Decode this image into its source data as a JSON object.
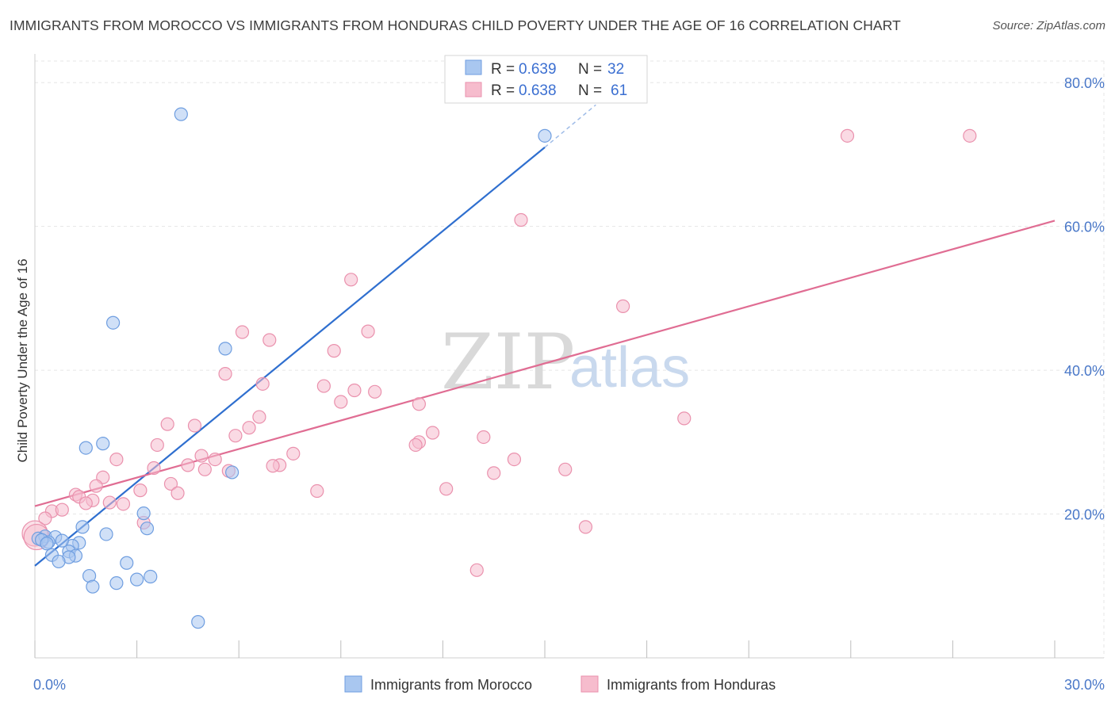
{
  "title": "IMMIGRANTS FROM MOROCCO VS IMMIGRANTS FROM HONDURAS CHILD POVERTY UNDER THE AGE OF 16 CORRELATION CHART",
  "source": "Source: ZipAtlas.com",
  "watermark": {
    "zip": "ZIP",
    "atlas": "atlas"
  },
  "colors": {
    "morocco_fill": "#a9c7f0",
    "morocco_stroke": "#6f9ee0",
    "morocco_line": "#2f6fcf",
    "honduras_fill": "#f6bccd",
    "honduras_stroke": "#ea91ad",
    "honduras_line": "#e06d93",
    "grid": "#e6e6e6",
    "tick_label": "#4a78c8"
  },
  "legend": {
    "rows": [
      {
        "r_label": "R =",
        "r_value": "0.639",
        "n_label": "N =",
        "n_value": "32"
      },
      {
        "r_label": "R =",
        "r_value": "0.638",
        "n_label": "N =",
        "n_value": "61"
      }
    ]
  },
  "chart_data": {
    "type": "scatter",
    "xlabel": "",
    "ylabel": "Child Poverty Under the Age of 16",
    "xlim": [
      0,
      30
    ],
    "ylim": [
      0,
      83
    ],
    "x_tick_labels": [
      {
        "value": 0,
        "label": "0.0%"
      },
      {
        "value": 30,
        "label": "30.0%"
      }
    ],
    "y_tick_labels": [
      {
        "value": 20,
        "label": "20.0%"
      },
      {
        "value": 40,
        "label": "40.0%"
      },
      {
        "value": 60,
        "label": "60.0%"
      },
      {
        "value": 80,
        "label": "80.0%"
      }
    ],
    "x_minor_ticks": [
      0,
      3,
      6,
      9,
      12,
      15,
      18,
      21,
      24,
      27,
      30
    ],
    "grid": true,
    "series": [
      {
        "name": "Immigrants from Morocco",
        "color": "#6f9ee0",
        "points": [
          [
            4.3,
            75.6
          ],
          [
            15.0,
            72.6
          ],
          [
            2.3,
            46.6
          ],
          [
            5.6,
            43.0
          ],
          [
            2.0,
            29.8
          ],
          [
            1.5,
            29.2
          ],
          [
            5.8,
            25.8
          ],
          [
            3.2,
            20.1
          ],
          [
            3.3,
            18.0
          ],
          [
            1.4,
            18.2
          ],
          [
            2.1,
            17.2
          ],
          [
            0.3,
            16.9
          ],
          [
            0.6,
            16.8
          ],
          [
            0.1,
            16.6
          ],
          [
            0.4,
            16.1
          ],
          [
            1.3,
            16.0
          ],
          [
            1.1,
            15.6
          ],
          [
            1.0,
            14.8
          ],
          [
            0.5,
            14.3
          ],
          [
            1.2,
            14.2
          ],
          [
            1.0,
            14.0
          ],
          [
            0.7,
            13.4
          ],
          [
            2.7,
            13.2
          ],
          [
            1.6,
            11.4
          ],
          [
            3.4,
            11.3
          ],
          [
            3.0,
            10.9
          ],
          [
            2.4,
            10.4
          ],
          [
            1.7,
            9.9
          ],
          [
            4.8,
            5.0
          ],
          [
            0.2,
            16.4
          ],
          [
            0.8,
            16.3
          ],
          [
            0.35,
            15.9
          ]
        ]
      },
      {
        "name": "Immigrants from Honduras",
        "color": "#ea91ad",
        "points": [
          [
            23.9,
            72.6
          ],
          [
            27.5,
            72.6
          ],
          [
            14.3,
            60.9
          ],
          [
            9.3,
            52.6
          ],
          [
            17.3,
            48.9
          ],
          [
            6.1,
            45.3
          ],
          [
            9.8,
            45.4
          ],
          [
            6.9,
            44.2
          ],
          [
            8.8,
            42.7
          ],
          [
            5.6,
            39.5
          ],
          [
            6.7,
            38.1
          ],
          [
            8.5,
            37.8
          ],
          [
            9.4,
            37.2
          ],
          [
            10.0,
            37.0
          ],
          [
            9.0,
            35.6
          ],
          [
            11.3,
            35.3
          ],
          [
            6.6,
            33.5
          ],
          [
            3.9,
            32.5
          ],
          [
            4.7,
            32.3
          ],
          [
            6.3,
            32.0
          ],
          [
            19.1,
            33.3
          ],
          [
            11.7,
            31.3
          ],
          [
            5.9,
            30.9
          ],
          [
            13.2,
            30.7
          ],
          [
            11.3,
            30.0
          ],
          [
            11.2,
            29.6
          ],
          [
            3.6,
            29.6
          ],
          [
            7.6,
            28.4
          ],
          [
            4.9,
            28.1
          ],
          [
            2.4,
            27.6
          ],
          [
            5.3,
            27.6
          ],
          [
            14.1,
            27.6
          ],
          [
            4.5,
            26.8
          ],
          [
            7.2,
            26.8
          ],
          [
            7.0,
            26.7
          ],
          [
            3.5,
            26.4
          ],
          [
            5.0,
            26.2
          ],
          [
            5.7,
            26.0
          ],
          [
            15.6,
            26.2
          ],
          [
            13.5,
            25.7
          ],
          [
            2.0,
            25.1
          ],
          [
            1.8,
            23.9
          ],
          [
            4.0,
            24.2
          ],
          [
            12.1,
            23.5
          ],
          [
            8.3,
            23.2
          ],
          [
            3.1,
            23.3
          ],
          [
            4.2,
            22.9
          ],
          [
            1.2,
            22.7
          ],
          [
            1.3,
            22.4
          ],
          [
            1.7,
            21.9
          ],
          [
            2.2,
            21.6
          ],
          [
            1.5,
            21.5
          ],
          [
            2.6,
            21.4
          ],
          [
            0.5,
            20.4
          ],
          [
            0.8,
            20.6
          ],
          [
            0.3,
            19.4
          ],
          [
            3.2,
            18.8
          ],
          [
            16.2,
            18.2
          ],
          [
            0.0,
            17.3
          ],
          [
            0.05,
            16.8
          ],
          [
            13.0,
            12.2
          ]
        ]
      }
    ],
    "trend_lines": [
      {
        "series": "Immigrants from Morocco",
        "x": [
          0,
          15.0
        ],
        "y": [
          12.8,
          71.0
        ],
        "dashed_extension_to": [
          16.5,
          76.9
        ]
      },
      {
        "series": "Immigrants from Honduras",
        "x": [
          0,
          30
        ],
        "y": [
          21.1,
          60.8
        ]
      }
    ],
    "legend": {
      "position": "bottom-center",
      "entries": [
        "Immigrants from Morocco",
        "Immigrants from Honduras"
      ]
    }
  }
}
